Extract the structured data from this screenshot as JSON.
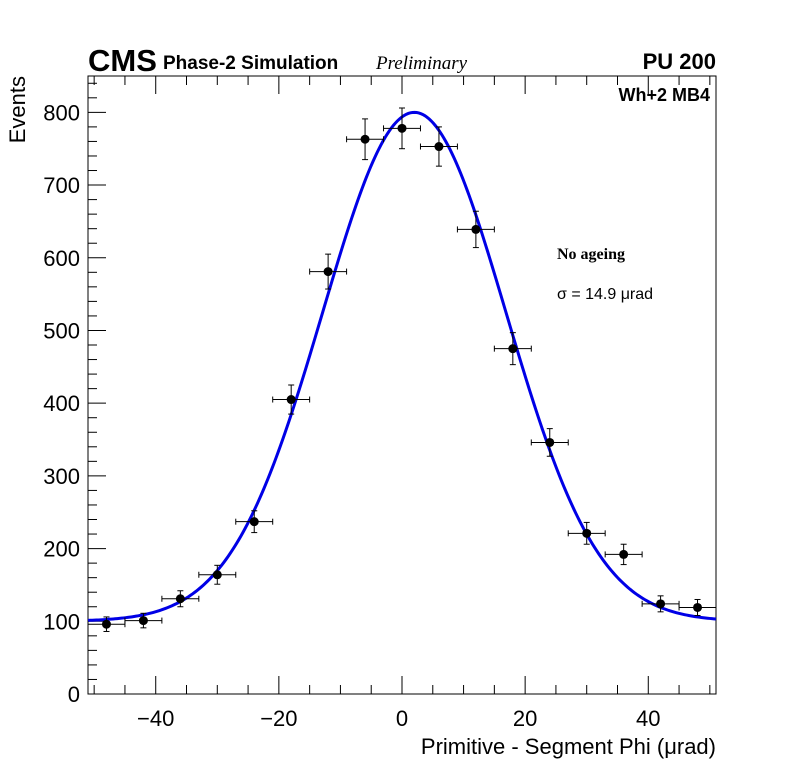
{
  "header": {
    "experiment": "CMS",
    "simulation": "Phase-2 Simulation",
    "status": "Preliminary",
    "pileup": "PU 200"
  },
  "annotations": {
    "sector": "Wh+2 MB4",
    "condition": "No ageing",
    "sigma_text": "σ = 14.9  μrad"
  },
  "colors": {
    "fit": "#0000e6",
    "markers": "#000000",
    "frame": "#000000"
  },
  "chart_data": {
    "type": "scatter",
    "title": "",
    "xlabel": "Primitive - Segment Phi (μrad)",
    "ylabel": "Events",
    "xlim": [
      -51,
      51
    ],
    "ylim": [
      0,
      850
    ],
    "grid": false,
    "x_ticks": [
      -40,
      -20,
      0,
      20,
      40
    ],
    "x_tick_labels": [
      "−40",
      "−20",
      "0",
      "20",
      "40"
    ],
    "y_ticks": [
      0,
      100,
      200,
      300,
      400,
      500,
      600,
      700,
      800
    ],
    "y_tick_labels": [
      "0",
      "100",
      "200",
      "300",
      "400",
      "500",
      "600",
      "700",
      "800"
    ],
    "bin_width": 6,
    "series": [
      {
        "name": "data",
        "x": [
          -48,
          -42,
          -36,
          -30,
          -24,
          -18,
          -12,
          -6,
          0,
          6,
          12,
          18,
          24,
          30,
          36,
          42,
          48
        ],
        "y": [
          96,
          101,
          131,
          164,
          237,
          405,
          581,
          763,
          778,
          753,
          639,
          475,
          346,
          221,
          192,
          124,
          119
        ],
        "yerr": [
          10,
          10,
          11,
          13,
          15,
          20,
          24,
          28,
          28,
          27,
          25,
          22,
          19,
          15,
          14,
          11,
          11
        ]
      }
    ],
    "fit": {
      "name": "gaussian fit",
      "function": "gaussian + constant",
      "amplitude": 700,
      "mean": 2,
      "sigma": 14.9,
      "constant": 100
    }
  }
}
